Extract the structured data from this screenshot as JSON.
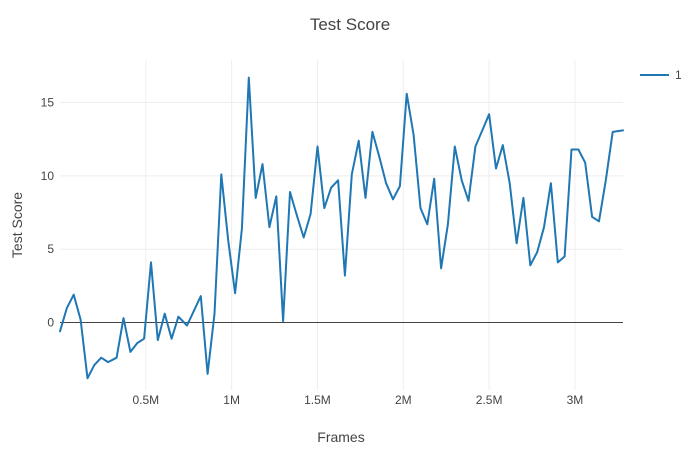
{
  "chart_data": {
    "type": "line",
    "title": "Test Score",
    "xlabel": "Frames",
    "ylabel": "Test Score",
    "xlim": [
      0,
      3280000
    ],
    "ylim": [
      -4.6,
      17.9
    ],
    "x_ticks": [
      500000,
      1000000,
      1500000,
      2000000,
      2500000,
      3000000
    ],
    "x_tick_labels": [
      "0.5M",
      "1M",
      "1.5M",
      "2M",
      "2.5M",
      "3M"
    ],
    "y_ticks": [
      0,
      5,
      10,
      15
    ],
    "y_tick_labels": [
      "0",
      "5",
      "10",
      "15"
    ],
    "grid": true,
    "zero_line": true,
    "legend_position": "top-right",
    "series": [
      {
        "name": "1",
        "color": "#1f77b4",
        "x": [
          0,
          40000,
          80000,
          120000,
          160000,
          200000,
          240000,
          280000,
          330000,
          370000,
          410000,
          450000,
          490000,
          530000,
          570000,
          610000,
          650000,
          690000,
          740000,
          780000,
          820000,
          860000,
          900000,
          940000,
          980000,
          1020000,
          1060000,
          1100000,
          1140000,
          1180000,
          1220000,
          1260000,
          1300000,
          1340000,
          1380000,
          1420000,
          1460000,
          1500000,
          1540000,
          1580000,
          1620000,
          1660000,
          1700000,
          1740000,
          1780000,
          1820000,
          1860000,
          1900000,
          1940000,
          1980000,
          2020000,
          2060000,
          2100000,
          2140000,
          2180000,
          2220000,
          2260000,
          2300000,
          2340000,
          2380000,
          2420000,
          2460000,
          2500000,
          2540000,
          2580000,
          2620000,
          2660000,
          2700000,
          2740000,
          2780000,
          2820000,
          2860000,
          2900000,
          2940000,
          2980000,
          3020000,
          3060000,
          3100000,
          3140000,
          3180000,
          3220000,
          3280000
        ],
        "values": [
          -0.6,
          1.0,
          1.9,
          0.2,
          -3.8,
          -2.9,
          -2.4,
          -2.7,
          -2.4,
          0.3,
          -2.0,
          -1.4,
          -1.1,
          4.1,
          -1.2,
          0.6,
          -1.1,
          0.4,
          -0.2,
          0.8,
          1.8,
          -3.5,
          0.6,
          10.1,
          5.6,
          2.0,
          6.4,
          16.7,
          8.5,
          10.8,
          6.5,
          8.6,
          0.1,
          8.9,
          7.3,
          5.8,
          7.4,
          12.0,
          7.8,
          9.2,
          9.7,
          3.2,
          10.1,
          12.4,
          8.5,
          13.0,
          11.3,
          9.5,
          8.4,
          9.3,
          15.6,
          12.8,
          7.8,
          6.7,
          9.8,
          3.7,
          6.7,
          12.0,
          9.7,
          8.3,
          12.0,
          13.1,
          14.2,
          10.5,
          12.1,
          9.5,
          5.4,
          8.5,
          3.9,
          4.8,
          6.5,
          9.5,
          4.1,
          4.5,
          11.8,
          11.8,
          10.9,
          7.2,
          6.9,
          9.7,
          13.0,
          13.1
        ]
      }
    ]
  }
}
